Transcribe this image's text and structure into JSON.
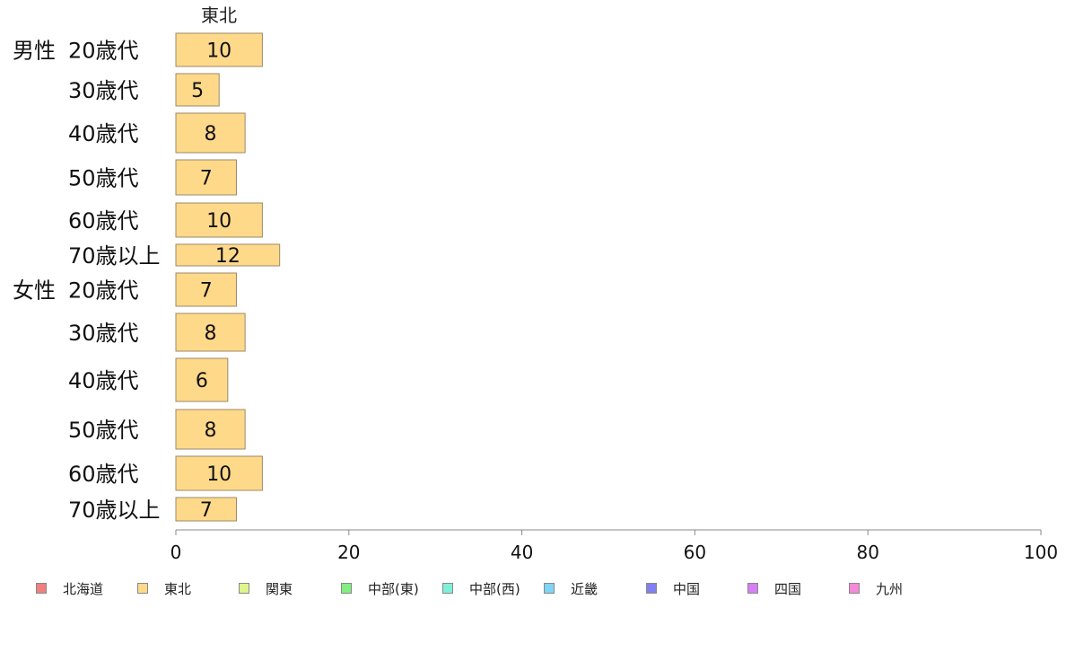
{
  "chart_data": {
    "type": "bar",
    "orientation": "horizontal",
    "series": [
      {
        "name": "東北",
        "color": "#FFD98A",
        "values": [
          10,
          5,
          8,
          7,
          10,
          12,
          7,
          8,
          6,
          8,
          10,
          7
        ]
      }
    ],
    "categories": [
      {
        "group": "男性",
        "label": "20歳代"
      },
      {
        "group": "",
        "label": "30歳代"
      },
      {
        "group": "",
        "label": "40歳代"
      },
      {
        "group": "",
        "label": "50歳代"
      },
      {
        "group": "",
        "label": "60歳代"
      },
      {
        "group": "",
        "label": "70歳以上"
      },
      {
        "group": "女性",
        "label": "20歳代"
      },
      {
        "group": "",
        "label": "30歳代"
      },
      {
        "group": "",
        "label": "40歳代"
      },
      {
        "group": "",
        "label": "50歳代"
      },
      {
        "group": "",
        "label": "60歳代"
      },
      {
        "group": "",
        "label": "70歳以上"
      }
    ],
    "xlim": [
      0,
      100
    ],
    "xticks": [
      0,
      20,
      40,
      60,
      80,
      100
    ],
    "grid": false,
    "legend_position": "bottom",
    "legend": [
      {
        "name": "北海道",
        "color": "#F08080"
      },
      {
        "name": "東北",
        "color": "#FFD98A"
      },
      {
        "name": "関東",
        "color": "#DDF58A"
      },
      {
        "name": "中部(東)",
        "color": "#80EE80"
      },
      {
        "name": "中部(西)",
        "color": "#7FF0D8"
      },
      {
        "name": "近畿",
        "color": "#80D4F5"
      },
      {
        "name": "中国",
        "color": "#8080F0"
      },
      {
        "name": "四国",
        "color": "#D67FF5"
      },
      {
        "name": "九州",
        "color": "#F58AD8"
      }
    ]
  }
}
